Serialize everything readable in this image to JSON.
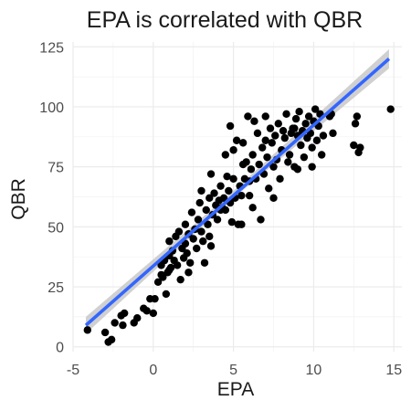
{
  "chart_data": {
    "type": "scatter",
    "title": "EPA is correlated with QBR",
    "xlabel": "EPA",
    "ylabel": "QBR",
    "xlim": [
      -5,
      15.5
    ],
    "ylim": [
      -2,
      127
    ],
    "x_ticks": [
      -5,
      0,
      5,
      10,
      15
    ],
    "x_tick_labels": [
      "-5",
      "0",
      "5",
      "10",
      "15"
    ],
    "y_ticks": [
      0,
      25,
      50,
      75,
      100,
      125
    ],
    "y_tick_labels": [
      "0",
      "25",
      "50",
      "75",
      "100",
      "125"
    ],
    "grid": true,
    "colors": {
      "points": "#000000",
      "fit_line": "#3366ff",
      "confidence_band": "#c8c8c8"
    },
    "fit_line": {
      "x": [
        -4.2,
        14.7
      ],
      "y": [
        9,
        120
      ]
    },
    "confidence_band": {
      "lower": [
        [
          -4.2,
          5.5
        ],
        [
          5.0,
          62
        ],
        [
          14.7,
          116
        ]
      ],
      "upper": [
        [
          -4.2,
          12.5
        ],
        [
          5.0,
          65
        ],
        [
          14.7,
          124
        ]
      ]
    },
    "points": [
      [
        -4.1,
        7
      ],
      [
        -3.0,
        6
      ],
      [
        -2.8,
        2
      ],
      [
        -2.6,
        3
      ],
      [
        -2.4,
        10
      ],
      [
        -2.0,
        13
      ],
      [
        -1.9,
        9
      ],
      [
        -1.8,
        14
      ],
      [
        -1.2,
        10
      ],
      [
        -1.0,
        12
      ],
      [
        -0.6,
        16
      ],
      [
        -0.4,
        15
      ],
      [
        -0.2,
        20
      ],
      [
        0.0,
        14
      ],
      [
        0.1,
        20
      ],
      [
        0.3,
        27
      ],
      [
        0.5,
        34
      ],
      [
        0.5,
        30
      ],
      [
        0.6,
        29
      ],
      [
        0.7,
        36
      ],
      [
        0.8,
        22
      ],
      [
        0.9,
        31
      ],
      [
        1.0,
        44
      ],
      [
        1.0,
        38
      ],
      [
        1.1,
        33
      ],
      [
        1.2,
        40
      ],
      [
        1.3,
        36
      ],
      [
        1.4,
        46
      ],
      [
        1.5,
        34
      ],
      [
        1.6,
        48
      ],
      [
        1.7,
        28
      ],
      [
        1.8,
        41
      ],
      [
        1.9,
        37
      ],
      [
        2.0,
        43
      ],
      [
        2.0,
        51
      ],
      [
        2.1,
        39
      ],
      [
        2.2,
        47
      ],
      [
        2.3,
        35
      ],
      [
        2.4,
        56
      ],
      [
        2.5,
        45
      ],
      [
        2.6,
        49
      ],
      [
        2.7,
        41
      ],
      [
        2.8,
        53
      ],
      [
        2.9,
        60
      ],
      [
        3.0,
        48
      ],
      [
        3.1,
        44
      ],
      [
        3.2,
        35
      ],
      [
        3.3,
        57
      ],
      [
        3.4,
        51
      ],
      [
        3.5,
        62
      ],
      [
        3.5,
        46
      ],
      [
        3.6,
        72
      ],
      [
        3.7,
        55
      ],
      [
        3.8,
        64
      ],
      [
        3.9,
        59
      ],
      [
        4.0,
        53
      ],
      [
        4.1,
        61
      ],
      [
        4.2,
        67
      ],
      [
        4.3,
        58
      ],
      [
        4.4,
        62
      ],
      [
        4.5,
        57
      ],
      [
        4.5,
        80
      ],
      [
        4.6,
        71
      ],
      [
        4.7,
        65
      ],
      [
        4.8,
        60
      ],
      [
        4.8,
        92
      ],
      [
        4.9,
        52
      ],
      [
        5.0,
        70
      ],
      [
        5.0,
        82
      ],
      [
        5.1,
        62
      ],
      [
        5.2,
        86
      ],
      [
        5.3,
        51
      ],
      [
        5.4,
        67
      ],
      [
        5.5,
        63
      ],
      [
        5.6,
        85
      ],
      [
        5.6,
        76
      ],
      [
        5.7,
        70
      ],
      [
        5.8,
        77
      ],
      [
        5.9,
        96
      ],
      [
        6.0,
        63
      ],
      [
        6.1,
        74
      ],
      [
        6.2,
        80
      ],
      [
        6.3,
        94
      ],
      [
        6.4,
        70
      ],
      [
        6.5,
        89
      ],
      [
        6.6,
        76
      ],
      [
        6.7,
        53
      ],
      [
        6.8,
        83
      ],
      [
        6.9,
        72
      ],
      [
        7.0,
        96
      ],
      [
        7.0,
        86
      ],
      [
        7.1,
        79
      ],
      [
        7.2,
        66
      ],
      [
        7.3,
        91
      ],
      [
        7.4,
        85
      ],
      [
        7.5,
        75
      ],
      [
        7.6,
        88
      ],
      [
        7.7,
        78
      ],
      [
        7.8,
        93
      ],
      [
        7.9,
        70
      ],
      [
        8.0,
        82
      ],
      [
        8.1,
        90
      ],
      [
        8.2,
        87
      ],
      [
        8.3,
        97
      ],
      [
        8.4,
        77
      ],
      [
        8.5,
        80
      ],
      [
        8.6,
        89
      ],
      [
        8.7,
        91
      ],
      [
        8.8,
        75
      ],
      [
        8.9,
        95
      ],
      [
        9.0,
        88
      ],
      [
        9.1,
        98
      ],
      [
        9.2,
        84
      ],
      [
        9.3,
        90
      ],
      [
        9.4,
        79
      ],
      [
        9.5,
        93
      ],
      [
        9.6,
        87
      ],
      [
        9.7,
        96
      ],
      [
        9.8,
        89
      ],
      [
        9.9,
        83
      ],
      [
        10.0,
        94
      ],
      [
        10.1,
        99
      ],
      [
        10.2,
        86
      ],
      [
        10.3,
        92
      ],
      [
        10.4,
        97
      ],
      [
        10.5,
        80
      ],
      [
        10.6,
        88
      ],
      [
        11.0,
        96
      ],
      [
        11.2,
        89
      ],
      [
        12.5,
        84
      ],
      [
        12.6,
        93
      ],
      [
        12.7,
        96
      ],
      [
        12.8,
        81
      ],
      [
        12.9,
        83
      ],
      [
        14.8,
        99
      ],
      [
        7.5,
        62
      ],
      [
        6.2,
        58
      ],
      [
        9.0,
        74
      ],
      [
        3.0,
        65
      ],
      [
        2.2,
        31
      ],
      [
        8.8,
        91
      ],
      [
        1.0,
        32
      ],
      [
        6.0,
        69
      ],
      [
        4.2,
        57
      ],
      [
        5.5,
        51
      ],
      [
        3.6,
        42
      ],
      [
        9.9,
        75
      ],
      [
        11.1,
        97
      ]
    ]
  }
}
